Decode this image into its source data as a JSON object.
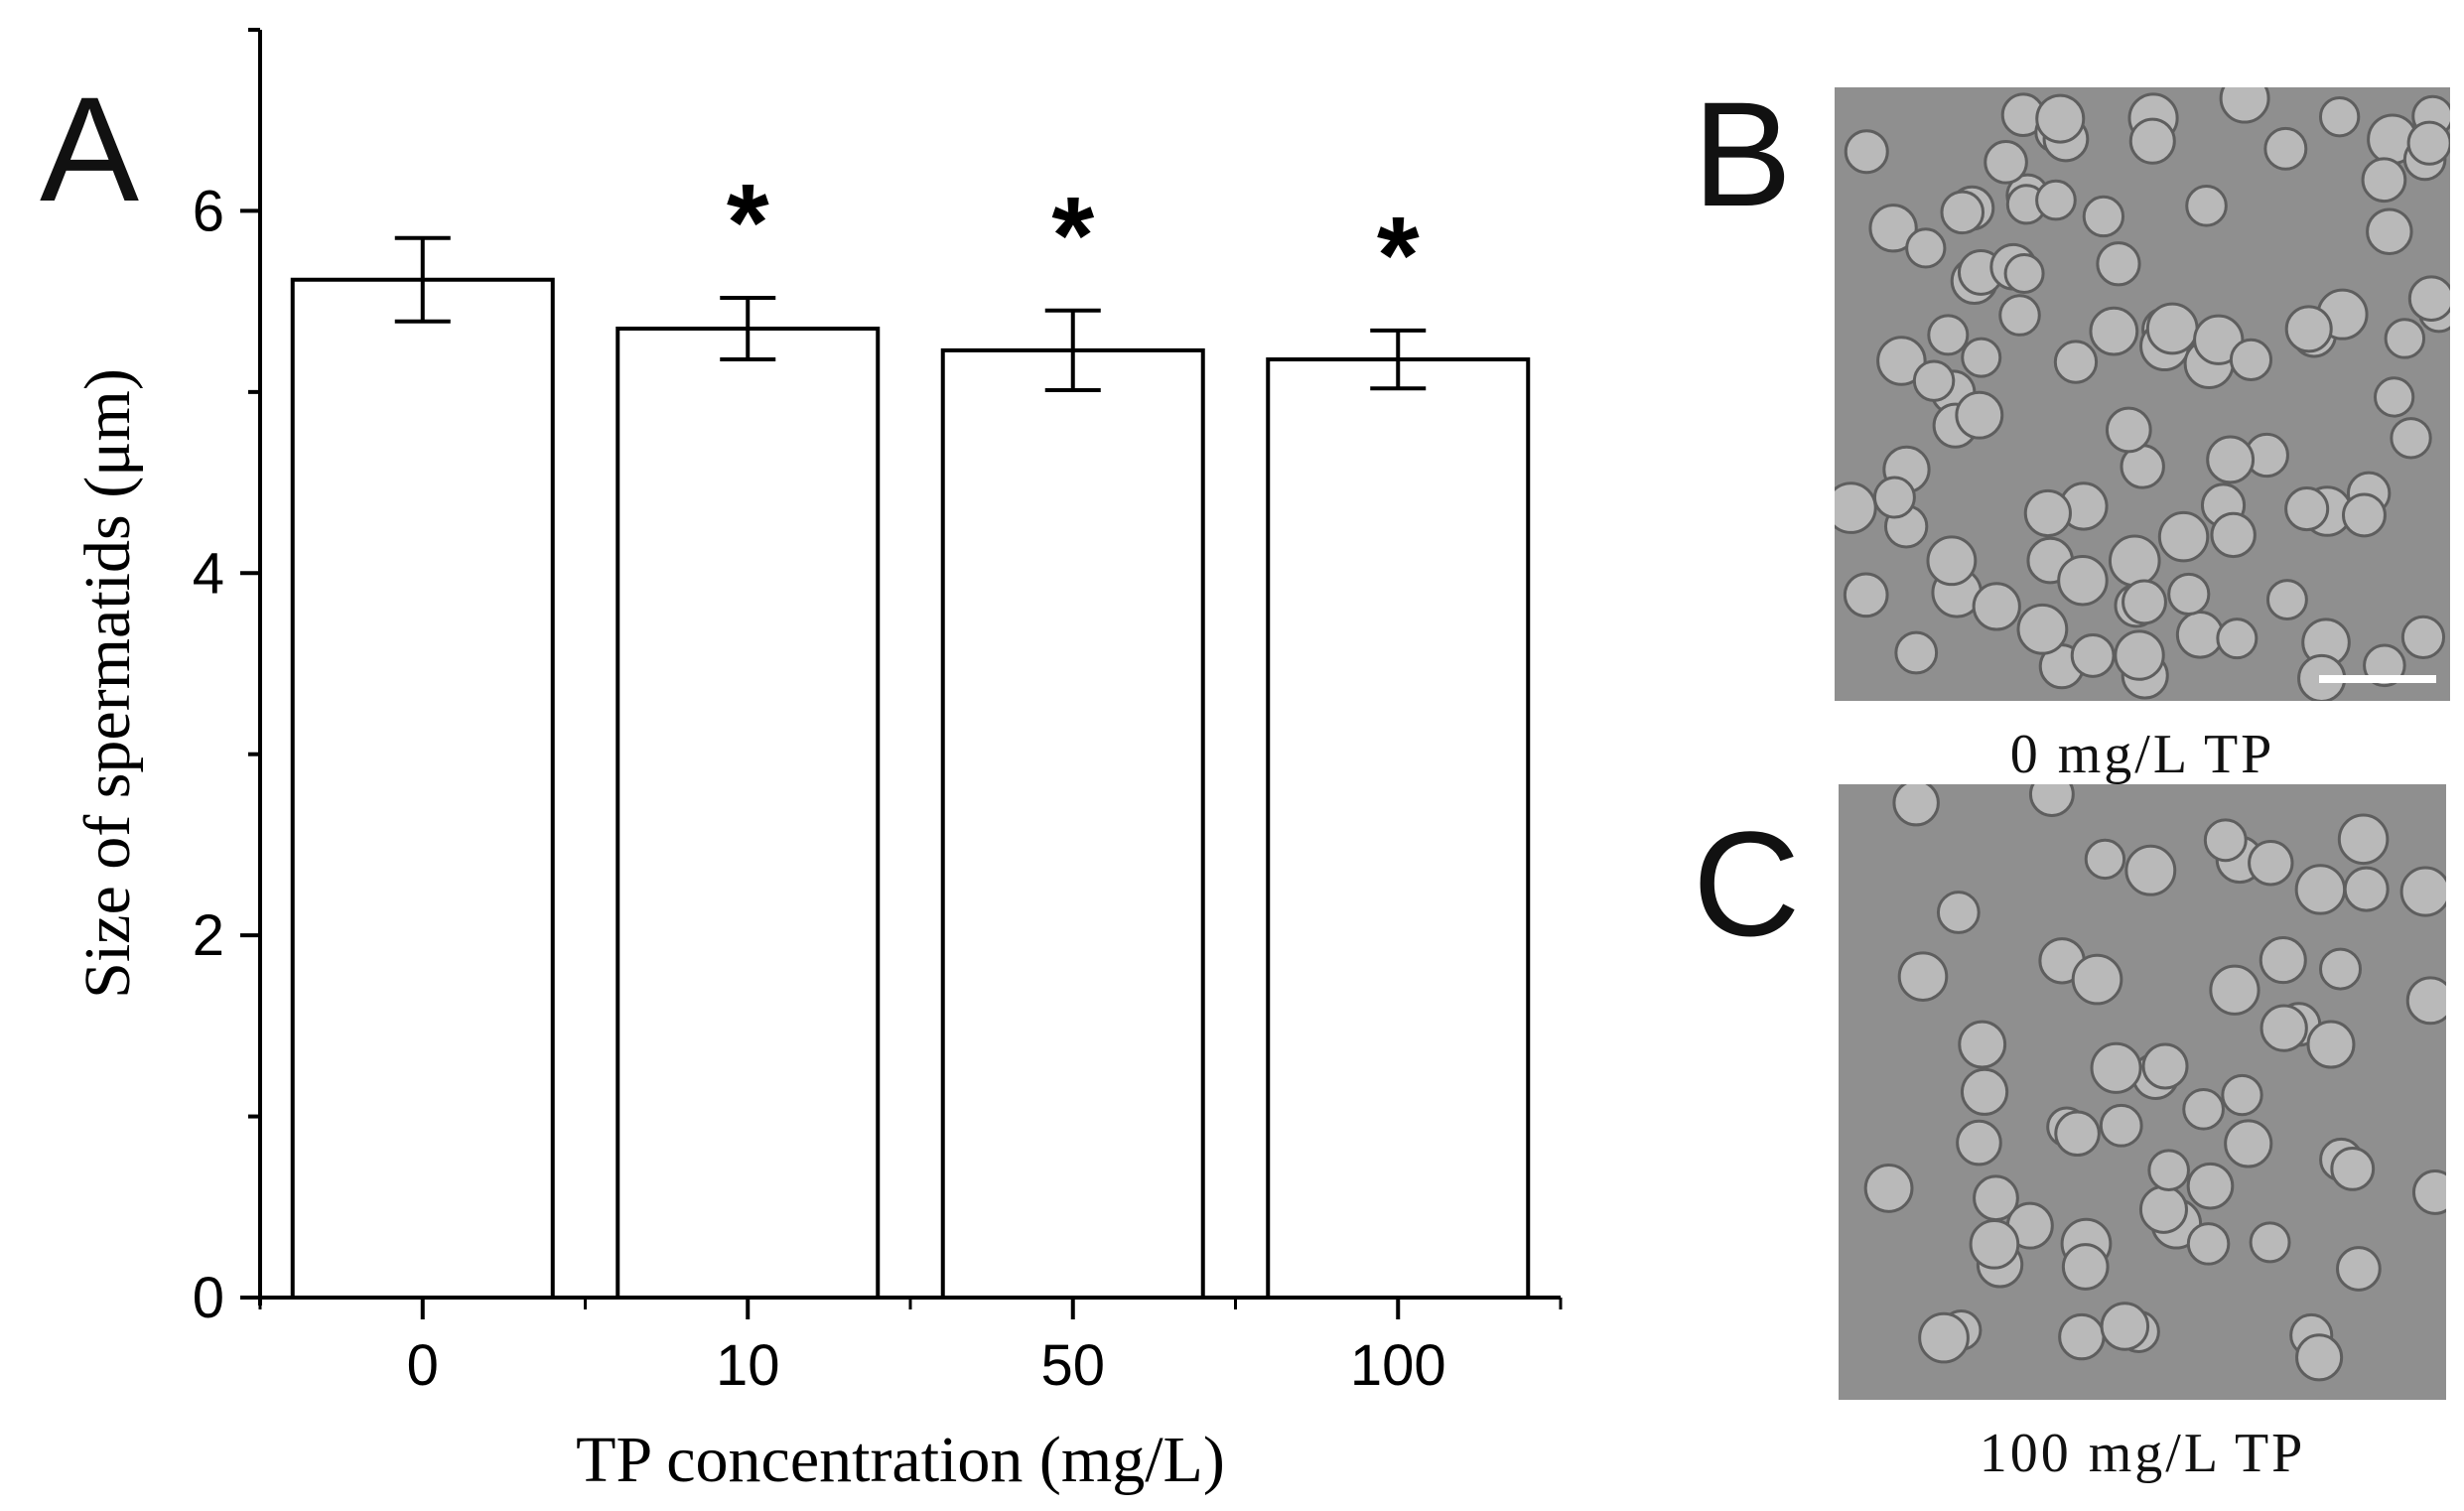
{
  "panels": {
    "a_label": "A",
    "b_label": "B",
    "c_label": "C"
  },
  "chart_data": {
    "type": "bar",
    "categories": [
      "0",
      "10",
      "50",
      "100"
    ],
    "values": [
      5.62,
      5.35,
      5.23,
      5.18
    ],
    "error": [
      0.23,
      0.17,
      0.22,
      0.16
    ],
    "significance": [
      "",
      "*",
      "*",
      "*"
    ],
    "xlabel": "TP concentration (mg/L)",
    "ylabel": "Size of spermatids (μm)",
    "ylim": [
      0,
      7
    ],
    "yticks": [
      0,
      2,
      4,
      6
    ],
    "grid": false,
    "bar_color": "#ffffff",
    "edge_color": "#000000"
  },
  "micrographs": {
    "b_caption": "0 mg/L TP",
    "c_caption": "100 mg/L TP",
    "background_color": "#8f8f8f",
    "cell_color": "#b9b9b9"
  }
}
